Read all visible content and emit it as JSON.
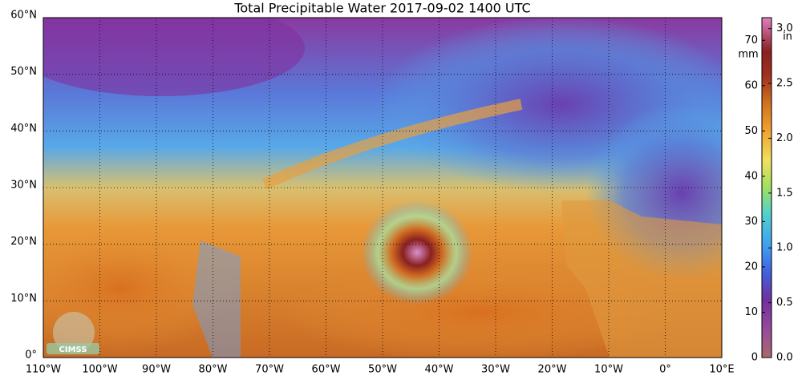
{
  "map": {
    "title": "Total Precipitable Water  2017-09-02 1400 UTC",
    "logo": "CIMSS",
    "lonlim": [
      -110,
      10
    ],
    "latlim": [
      0,
      60
    ],
    "lat_ticks": [
      {
        "value": 0,
        "label": "0°"
      },
      {
        "value": 10,
        "label": "10°N"
      },
      {
        "value": 20,
        "label": "20°N"
      },
      {
        "value": 30,
        "label": "30°N"
      },
      {
        "value": 40,
        "label": "40°N"
      },
      {
        "value": 50,
        "label": "50°N"
      },
      {
        "value": 60,
        "label": "60°N"
      }
    ],
    "lon_ticks": [
      {
        "value": -110,
        "label": "110°W"
      },
      {
        "value": -100,
        "label": "100°W"
      },
      {
        "value": -90,
        "label": "90°W"
      },
      {
        "value": -80,
        "label": "80°W"
      },
      {
        "value": -70,
        "label": "70°W"
      },
      {
        "value": -60,
        "label": "60°W"
      },
      {
        "value": -50,
        "label": "50°W"
      },
      {
        "value": -40,
        "label": "40°W"
      },
      {
        "value": -30,
        "label": "30°W"
      },
      {
        "value": -20,
        "label": "20°W"
      },
      {
        "value": -10,
        "label": "10°W"
      },
      {
        "value": 0,
        "label": "0°"
      },
      {
        "value": 10,
        "label": "10°E"
      }
    ]
  },
  "colorbar": {
    "mm": {
      "unit": "mm",
      "lim": [
        0,
        75
      ],
      "ticks": [
        0,
        10,
        20,
        30,
        40,
        50,
        60,
        70
      ]
    },
    "in": {
      "unit": "in",
      "lim": [
        0,
        3.1
      ],
      "ticks": [
        {
          "value": 0,
          "label": "0.0"
        },
        {
          "value": 0.5,
          "label": "0.5"
        },
        {
          "value": 1,
          "label": "1.0"
        },
        {
          "value": 1.5,
          "label": "1.5"
        },
        {
          "value": 2,
          "label": "2.0"
        },
        {
          "value": 2.5,
          "label": "2.5"
        },
        {
          "value": 3,
          "label": "3.0"
        }
      ]
    }
  }
}
